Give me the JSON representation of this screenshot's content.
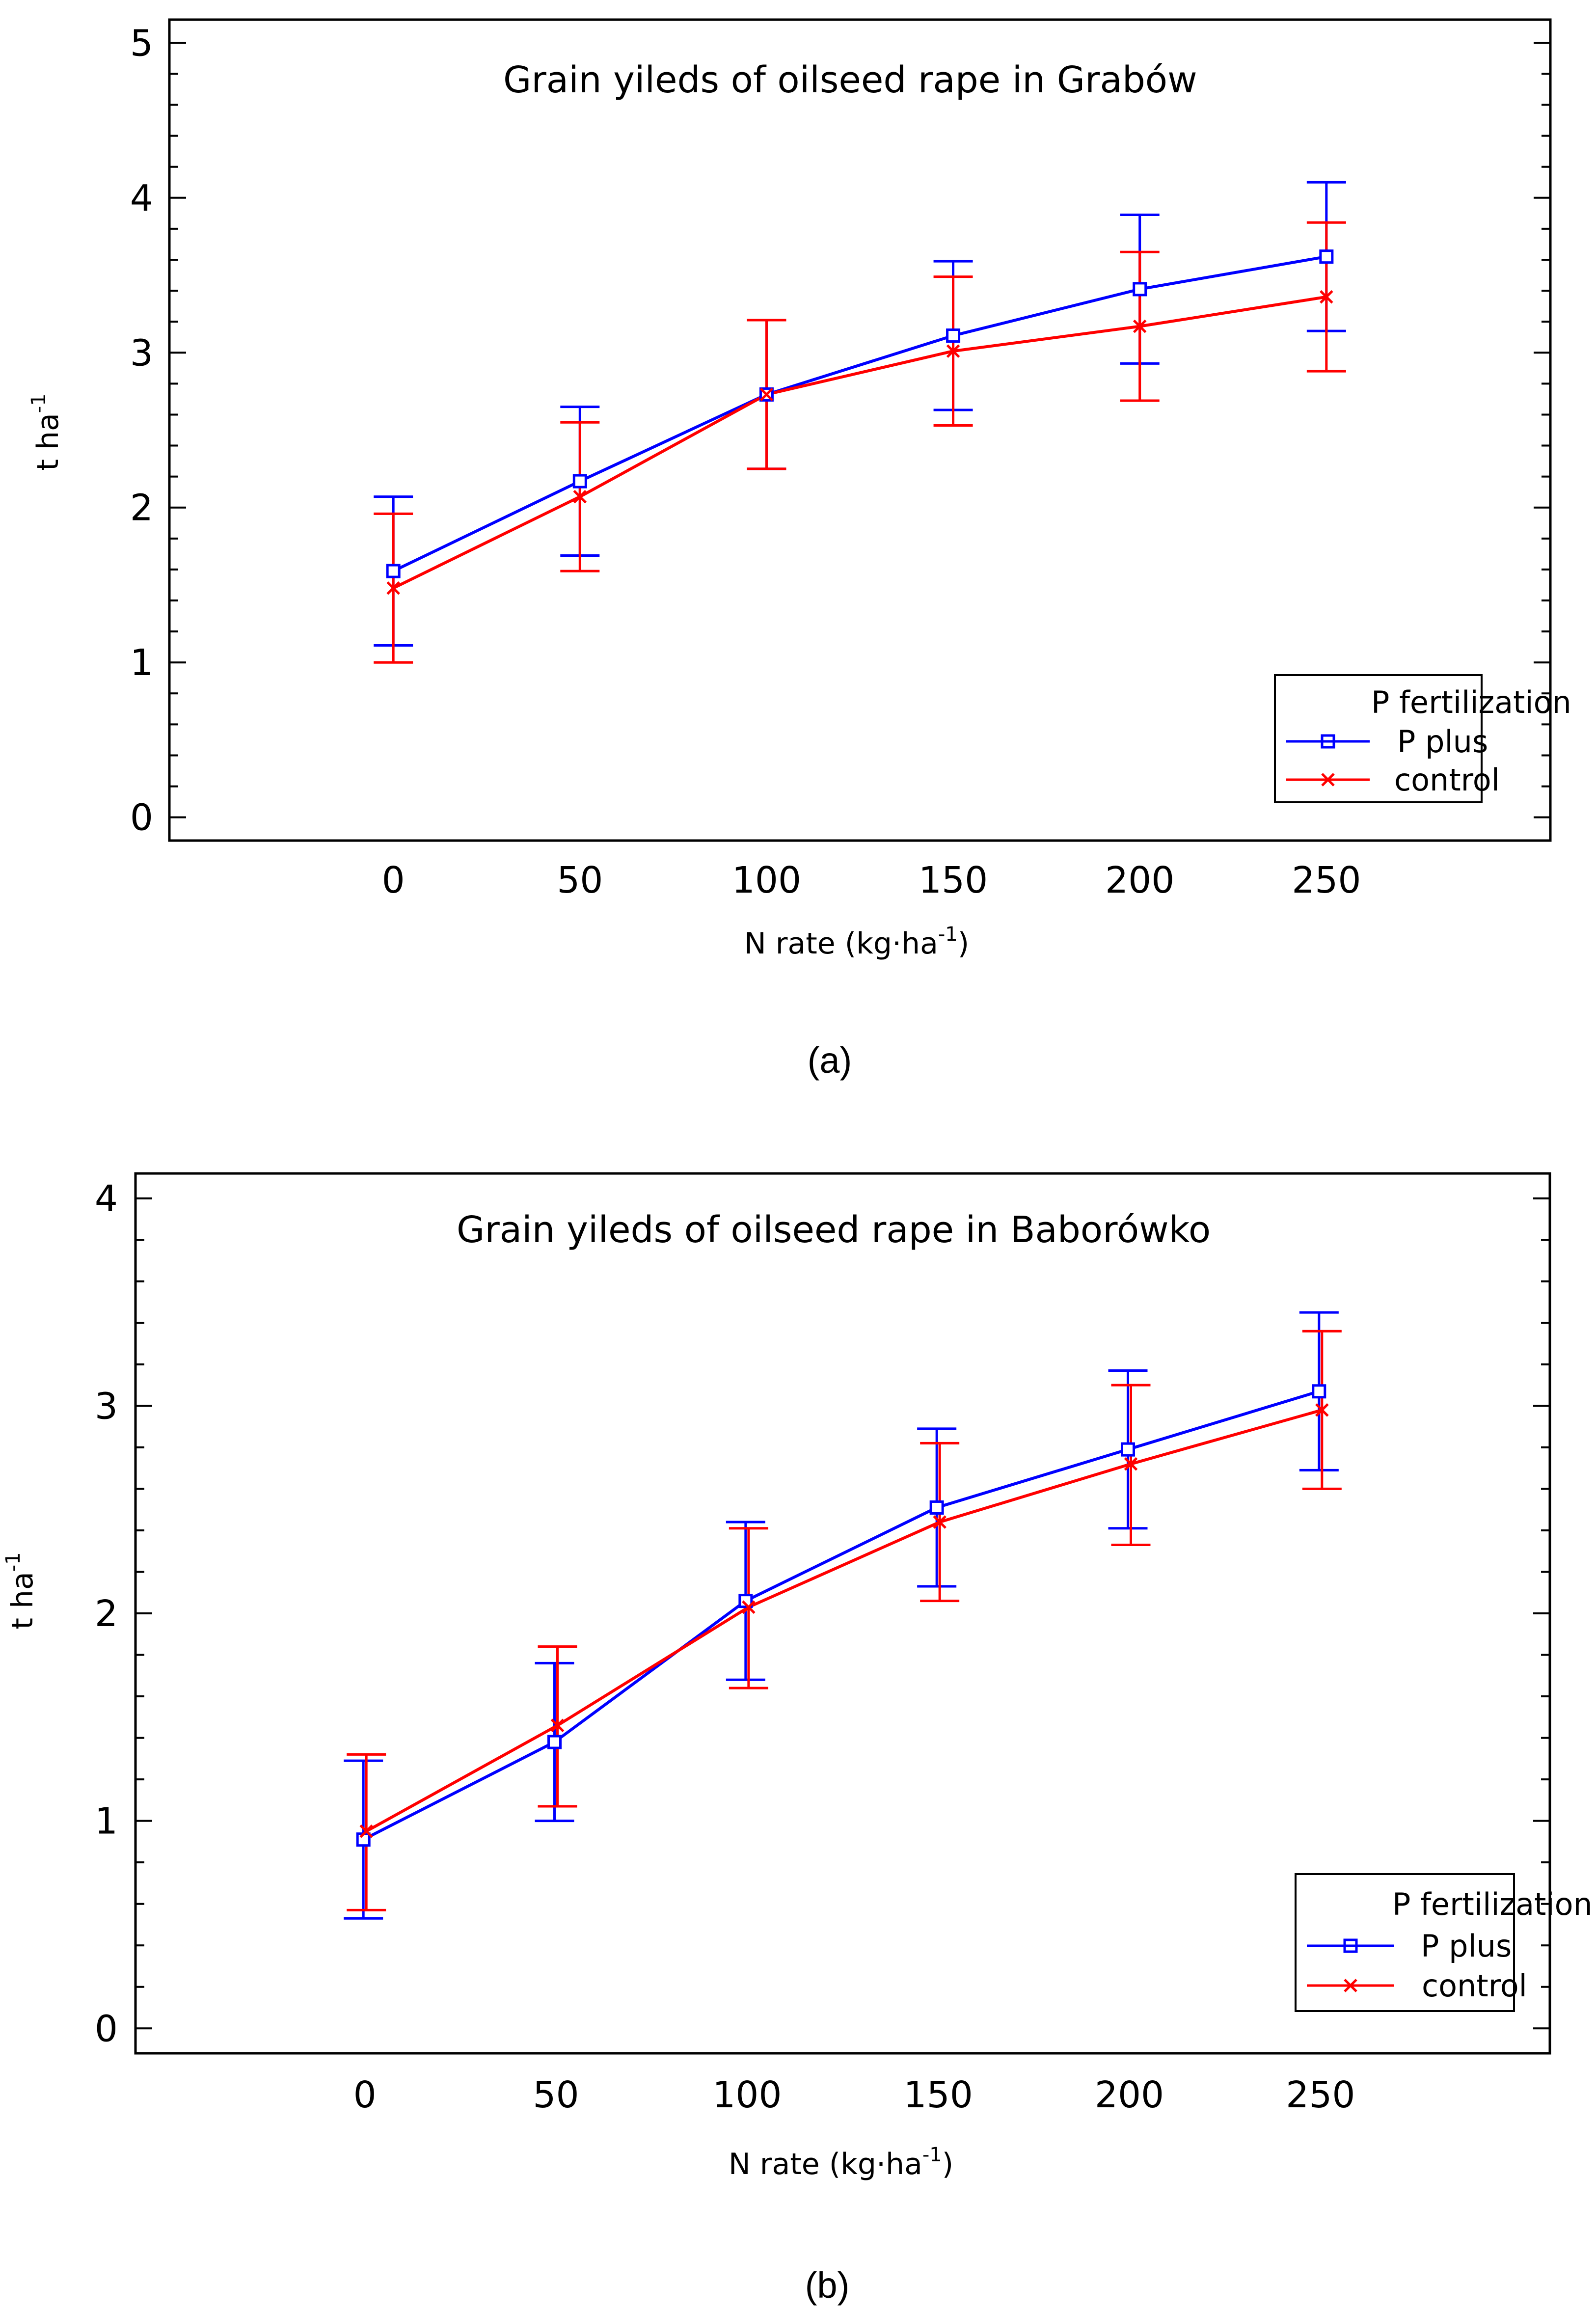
{
  "chart_data": [
    {
      "type": "line",
      "panel_label": "(a)",
      "title": "Grain yileds of oilseed rape in Grabów",
      "xlabel": "N rate (kg·ha",
      "xlabel_sup": "-1",
      "xlabel_end": ")",
      "ylabel": "t ha",
      "ylabel_sup": "-1",
      "x": [
        0,
        50,
        100,
        150,
        200,
        250
      ],
      "x_tick_labels": [
        "0",
        "50",
        "100",
        "150",
        "200",
        "250"
      ],
      "y_tick_labels": [
        "0",
        "1",
        "2",
        "3",
        "4",
        "5"
      ],
      "xlim": [
        -60,
        310
      ],
      "ylim": [
        -0.15,
        5.15
      ],
      "legend": {
        "title": "P fertilization",
        "placement": "bottom-right"
      },
      "series": [
        {
          "name": "P plus",
          "color": "#0000ff",
          "marker": "square",
          "values": [
            1.59,
            2.17,
            2.73,
            3.11,
            3.41,
            3.62
          ],
          "err_low": [
            1.11,
            1.69,
            2.25,
            2.63,
            2.93,
            3.14
          ],
          "err_high": [
            2.07,
            2.65,
            3.21,
            3.59,
            3.89,
            4.1
          ]
        },
        {
          "name": "control",
          "color": "#ff0000",
          "marker": "x",
          "values": [
            1.48,
            2.07,
            2.73,
            3.01,
            3.17,
            3.36
          ],
          "err_low": [
            1.0,
            1.59,
            2.25,
            2.53,
            2.69,
            2.88
          ],
          "err_high": [
            1.96,
            2.55,
            3.21,
            3.49,
            3.65,
            3.84
          ]
        }
      ]
    },
    {
      "type": "line",
      "panel_label": "(b)",
      "title": "Grain yileds of oilseed rape in Baborówko",
      "xlabel": "N rate (kg·ha",
      "xlabel_sup": "-1",
      "xlabel_end": ")",
      "ylabel": "t ha",
      "ylabel_sup": "-1",
      "x": [
        0,
        50,
        100,
        150,
        200,
        250
      ],
      "x_tick_labels": [
        "0",
        "50",
        "100",
        "150",
        "200",
        "250"
      ],
      "y_tick_labels": [
        "0",
        "1",
        "2",
        "3",
        "4"
      ],
      "xlim": [
        -60,
        310
      ],
      "ylim": [
        -0.12,
        4.12
      ],
      "legend": {
        "title": "P fertilization",
        "placement": "bottom-right"
      },
      "series": [
        {
          "name": "P plus",
          "color": "#0000ff",
          "marker": "square",
          "values": [
            0.91,
            1.38,
            2.06,
            2.51,
            2.79,
            3.07
          ],
          "err_low": [
            0.53,
            1.0,
            1.68,
            2.13,
            2.41,
            2.69
          ],
          "err_high": [
            1.29,
            1.76,
            2.44,
            2.89,
            3.17,
            3.45
          ]
        },
        {
          "name": "control",
          "color": "#ff0000",
          "marker": "x",
          "values": [
            0.95,
            1.46,
            2.03,
            2.44,
            2.72,
            2.98
          ],
          "err_low": [
            0.57,
            1.07,
            1.64,
            2.06,
            2.33,
            2.6
          ],
          "err_high": [
            1.32,
            1.84,
            2.41,
            2.82,
            3.1,
            3.36
          ]
        }
      ]
    }
  ]
}
